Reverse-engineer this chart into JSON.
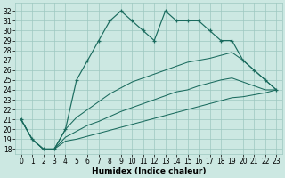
{
  "xlabel": "Humidex (Indice chaleur)",
  "x_values": [
    0,
    1,
    2,
    3,
    4,
    5,
    6,
    7,
    8,
    9,
    10,
    11,
    12,
    13,
    14,
    15,
    16,
    17,
    18,
    19,
    20,
    21,
    22,
    23
  ],
  "line_main_y": [
    21,
    19,
    18,
    18,
    20,
    25,
    27,
    29,
    31,
    32,
    31,
    30,
    29,
    32,
    31,
    31,
    31,
    30,
    29,
    29,
    27,
    26,
    25,
    24
  ],
  "line2_y": [
    21,
    19,
    18,
    18,
    20,
    21.2,
    22.0,
    22.8,
    23.6,
    24.2,
    24.8,
    25.2,
    25.6,
    26.0,
    26.4,
    26.8,
    27.0,
    27.2,
    27.5,
    27.8,
    27.0,
    26.0,
    25.0,
    24.0
  ],
  "line3_y": [
    21,
    19,
    18,
    18,
    19.2,
    19.8,
    20.4,
    20.8,
    21.3,
    21.8,
    22.2,
    22.6,
    23.0,
    23.4,
    23.8,
    24.0,
    24.4,
    24.7,
    25.0,
    25.2,
    24.8,
    24.4,
    24.0,
    24.0
  ],
  "line4_y": [
    21,
    19,
    18,
    18,
    18.8,
    19.0,
    19.3,
    19.6,
    19.9,
    20.2,
    20.5,
    20.8,
    21.1,
    21.4,
    21.7,
    22.0,
    22.3,
    22.6,
    22.9,
    23.2,
    23.3,
    23.5,
    23.7,
    24.0
  ],
  "bg_color": "#cce8e2",
  "grid_color": "#9dc8c0",
  "line_color": "#1a6b5e",
  "ylim": [
    17.5,
    32.8
  ],
  "xlim": [
    -0.5,
    23.5
  ],
  "yticks": [
    18,
    19,
    20,
    21,
    22,
    23,
    24,
    25,
    26,
    27,
    28,
    29,
    30,
    31,
    32
  ],
  "xticks": [
    0,
    1,
    2,
    3,
    4,
    5,
    6,
    7,
    8,
    9,
    10,
    11,
    12,
    13,
    14,
    15,
    16,
    17,
    18,
    19,
    20,
    21,
    22,
    23
  ],
  "tick_fontsize": 5.5,
  "xlabel_fontsize": 6.5
}
